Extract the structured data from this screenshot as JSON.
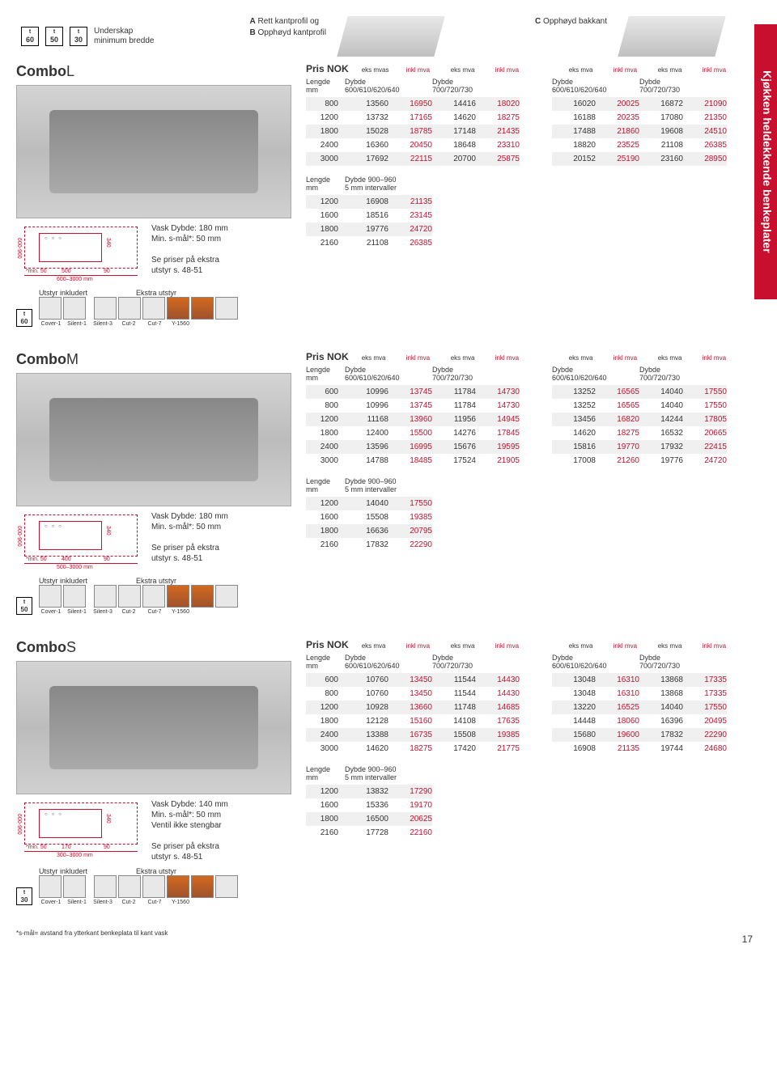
{
  "sideTab": "Kjøkken heldekkende benkeplater",
  "underskap": {
    "sizes": [
      "60",
      "50",
      "30"
    ],
    "label_l1": "Underskap",
    "label_l2": "minimum bredde"
  },
  "profiles": {
    "a": "Rett kantprofil og",
    "b": "Opphøyd kantprofil",
    "c": "Opphøyd bakkant"
  },
  "headers": {
    "pris": "Pris NOK",
    "eks": "eks mva",
    "eksmvas": "eks mvas",
    "inkl": "inkl mva",
    "exklma": "exkl ma",
    "inklma": "inkl ma",
    "lengde": "Lengde",
    "mm": "mm",
    "dybde": "Dybde",
    "d1": "600/610/620/640",
    "d2": "700/720/730",
    "d3": "Dybde 900–960",
    "d3b": "5 mm intervaller"
  },
  "common": {
    "vask180": "Vask Dybde: 180 mm",
    "vask140": "Vask Dybde: 140 mm",
    "smal": "Min. s-mål*: 50 mm",
    "ventil": "Ventil ikke stengbar",
    "sepriser": "Se priser på ekstra",
    "utstyrs": "utstyr s. 48-51",
    "utstyrInk": "Utstyr inkludert",
    "ekstraUt": "Ekstra utstyr",
    "accessories": [
      "Cover-1",
      "Silent-1",
      "Silent-3",
      "Cut-2",
      "Cut-7",
      "Y-1560"
    ]
  },
  "comboL": {
    "name": "Combo",
    "suffix": "L",
    "diagram": {
      "range": "600–3000 mm",
      "min": "min. 50",
      "w": "500",
      "h": "340",
      "side": "600-960",
      "ninety": "90"
    },
    "main": {
      "left": [
        [
          "800",
          "13560",
          "16950",
          "14416",
          "18020"
        ],
        [
          "1200",
          "13732",
          "17165",
          "14620",
          "18275"
        ],
        [
          "1800",
          "15028",
          "18785",
          "17148",
          "21435"
        ],
        [
          "2400",
          "16360",
          "20450",
          "18648",
          "23310"
        ],
        [
          "3000",
          "17692",
          "22115",
          "20700",
          "25875"
        ]
      ],
      "right": [
        [
          "16020",
          "20025",
          "16872",
          "21090"
        ],
        [
          "16188",
          "20235",
          "17080",
          "21350"
        ],
        [
          "17488",
          "21860",
          "19608",
          "24510"
        ],
        [
          "18820",
          "23525",
          "21108",
          "26385"
        ],
        [
          "20152",
          "25190",
          "23160",
          "28950"
        ]
      ]
    },
    "small": [
      [
        "1200",
        "16908",
        "21135"
      ],
      [
        "1600",
        "18516",
        "23145"
      ],
      [
        "1800",
        "19776",
        "24720"
      ],
      [
        "2160",
        "21108",
        "26385"
      ]
    ],
    "sizeIcon": "60"
  },
  "comboM": {
    "name": "Combo",
    "suffix": "M",
    "diagram": {
      "range": "500–3000 mm",
      "min": "min. 50",
      "w": "400",
      "h": "340",
      "side": "600-960",
      "ninety": "90"
    },
    "main": {
      "left": [
        [
          "600",
          "10996",
          "13745",
          "11784",
          "14730"
        ],
        [
          "800",
          "10996",
          "13745",
          "11784",
          "14730"
        ],
        [
          "1200",
          "11168",
          "13960",
          "11956",
          "14945"
        ],
        [
          "1800",
          "12400",
          "15500",
          "14276",
          "17845"
        ],
        [
          "2400",
          "13596",
          "16995",
          "15676",
          "19595"
        ],
        [
          "3000",
          "14788",
          "18485",
          "17524",
          "21905"
        ]
      ],
      "right": [
        [
          "13252",
          "16565",
          "14040",
          "17550"
        ],
        [
          "13252",
          "16565",
          "14040",
          "17550"
        ],
        [
          "13456",
          "16820",
          "14244",
          "17805"
        ],
        [
          "14620",
          "18275",
          "16532",
          "20665"
        ],
        [
          "15816",
          "19770",
          "17932",
          "22415"
        ],
        [
          "17008",
          "21260",
          "19776",
          "24720"
        ]
      ]
    },
    "small": [
      [
        "1200",
        "14040",
        "17550"
      ],
      [
        "1600",
        "15508",
        "19385"
      ],
      [
        "1800",
        "16636",
        "20795"
      ],
      [
        "2160",
        "17832",
        "22290"
      ]
    ],
    "sizeIcon": "50"
  },
  "comboS": {
    "name": "Combo",
    "suffix": "S",
    "diagram": {
      "range": "300–3000 mm",
      "min": "min. 50",
      "w": "170",
      "h": "340",
      "side": "600-960",
      "ninety": "90"
    },
    "main": {
      "left": [
        [
          "600",
          "10760",
          "13450",
          "11544",
          "14430"
        ],
        [
          "800",
          "10760",
          "13450",
          "11544",
          "14430"
        ],
        [
          "1200",
          "10928",
          "13660",
          "11748",
          "14685"
        ],
        [
          "1800",
          "12128",
          "15160",
          "14108",
          "17635"
        ],
        [
          "2400",
          "13388",
          "16735",
          "15508",
          "19385"
        ],
        [
          "3000",
          "14620",
          "18275",
          "17420",
          "21775"
        ]
      ],
      "right": [
        [
          "13048",
          "16310",
          "13868",
          "17335"
        ],
        [
          "13048",
          "16310",
          "13868",
          "17335"
        ],
        [
          "13220",
          "16525",
          "14040",
          "17550"
        ],
        [
          "14448",
          "18060",
          "16396",
          "20495"
        ],
        [
          "15680",
          "19600",
          "17832",
          "22290"
        ],
        [
          "16908",
          "21135",
          "19744",
          "24680"
        ]
      ]
    },
    "small": [
      [
        "1200",
        "13832",
        "17290"
      ],
      [
        "1600",
        "15336",
        "19170"
      ],
      [
        "1800",
        "16500",
        "20625"
      ],
      [
        "2160",
        "17728",
        "22160"
      ]
    ],
    "sizeIcon": "30"
  },
  "footnote": "*s-mål= avstand fra ytterkant benkeplata til kant vask",
  "pageNum": "17",
  "colors": {
    "red": "#c8102e",
    "grey": "#f0f0f0"
  }
}
